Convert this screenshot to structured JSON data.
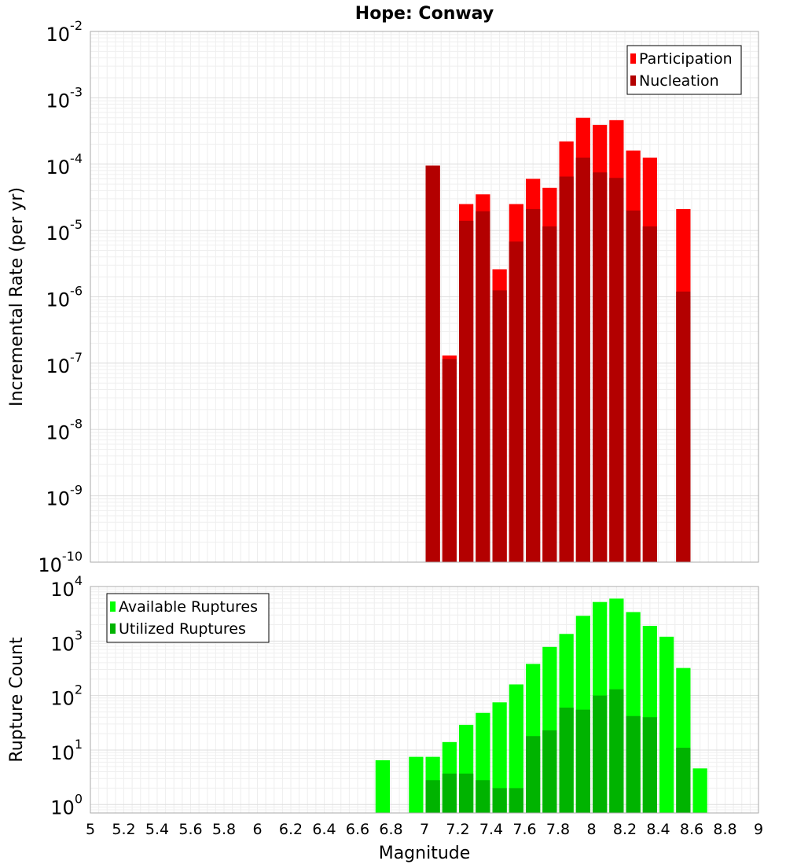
{
  "chart_data": [
    {
      "type": "bar",
      "title": "Hope: Conway",
      "xlabel": "",
      "ylabel": "Incremental Rate (per yr)",
      "xlim": [
        5,
        9
      ],
      "ylim": [
        1e-10,
        0.01
      ],
      "yscale": "log",
      "y_tick_exponents": [
        "-10",
        "-9",
        "-8",
        "-7",
        "-6",
        "-5",
        "-4",
        "-3",
        "-2"
      ],
      "y_tick_base": "10",
      "grid": true,
      "legend_position": "top-right",
      "bar_width": 0.1,
      "series": [
        {
          "name": "Participation",
          "color": "#ff0000",
          "points": [
            {
              "x": 7.05,
              "y": 9.5e-05
            },
            {
              "x": 7.15,
              "y": 1.3e-07
            },
            {
              "x": 7.25,
              "y": 2.5e-05
            },
            {
              "x": 7.35,
              "y": 3.5e-05
            },
            {
              "x": 7.45,
              "y": 2.6e-06
            },
            {
              "x": 7.55,
              "y": 2.5e-05
            },
            {
              "x": 7.65,
              "y": 6e-05
            },
            {
              "x": 7.75,
              "y": 4.4e-05
            },
            {
              "x": 7.85,
              "y": 0.00022
            },
            {
              "x": 7.95,
              "y": 0.0005
            },
            {
              "x": 8.05,
              "y": 0.00039
            },
            {
              "x": 8.15,
              "y": 0.00046
            },
            {
              "x": 8.25,
              "y": 0.00016
            },
            {
              "x": 8.35,
              "y": 0.000125
            },
            {
              "x": 8.55,
              "y": 2.1e-05
            }
          ]
        },
        {
          "name": "Nucleation",
          "color": "#b30000",
          "points": [
            {
              "x": 7.05,
              "y": 9.5e-05
            },
            {
              "x": 7.15,
              "y": 1.15e-07
            },
            {
              "x": 7.25,
              "y": 1.4e-05
            },
            {
              "x": 7.35,
              "y": 1.95e-05
            },
            {
              "x": 7.45,
              "y": 1.25e-06
            },
            {
              "x": 7.55,
              "y": 6.8e-06
            },
            {
              "x": 7.65,
              "y": 2.1e-05
            },
            {
              "x": 7.75,
              "y": 1.15e-05
            },
            {
              "x": 7.85,
              "y": 6.5e-05
            },
            {
              "x": 7.95,
              "y": 0.000125
            },
            {
              "x": 8.05,
              "y": 7.5e-05
            },
            {
              "x": 8.15,
              "y": 6.2e-05
            },
            {
              "x": 8.25,
              "y": 2e-05
            },
            {
              "x": 8.35,
              "y": 1.15e-05
            },
            {
              "x": 8.55,
              "y": 1.2e-06
            }
          ]
        }
      ]
    },
    {
      "type": "bar",
      "title": "",
      "xlabel": "Magnitude",
      "ylabel": "Rupture Count",
      "xlim": [
        5,
        9
      ],
      "ylim": [
        0.7,
        10000
      ],
      "yscale": "log",
      "y_tick_exponents": [
        "0",
        "1",
        "2",
        "3",
        "4"
      ],
      "y_tick_base": "10",
      "x_ticks": [
        "5",
        "5.2",
        "5.4",
        "5.6",
        "5.8",
        "6",
        "6.2",
        "6.4",
        "6.6",
        "6.8",
        "7",
        "7.2",
        "7.4",
        "7.6",
        "7.8",
        "8",
        "8.2",
        "8.4",
        "8.6",
        "8.8",
        "9"
      ],
      "grid": true,
      "legend_position": "top-left",
      "bar_width": 0.1,
      "series": [
        {
          "name": "Available Ruptures",
          "color": "#00ff00",
          "points": [
            {
              "x": 6.75,
              "y": 6.5
            },
            {
              "x": 6.95,
              "y": 7.5
            },
            {
              "x": 7.05,
              "y": 7.5
            },
            {
              "x": 7.15,
              "y": 14
            },
            {
              "x": 7.25,
              "y": 29
            },
            {
              "x": 7.35,
              "y": 48
            },
            {
              "x": 7.45,
              "y": 75
            },
            {
              "x": 7.55,
              "y": 160
            },
            {
              "x": 7.65,
              "y": 380
            },
            {
              "x": 7.75,
              "y": 780
            },
            {
              "x": 7.85,
              "y": 1350
            },
            {
              "x": 7.95,
              "y": 2900
            },
            {
              "x": 8.05,
              "y": 5200
            },
            {
              "x": 8.15,
              "y": 6000
            },
            {
              "x": 8.25,
              "y": 3400
            },
            {
              "x": 8.35,
              "y": 1900
            },
            {
              "x": 8.45,
              "y": 1200
            },
            {
              "x": 8.55,
              "y": 320
            },
            {
              "x": 8.65,
              "y": 4.6
            }
          ]
        },
        {
          "name": "Utilized Ruptures",
          "color": "#00b300",
          "points": [
            {
              "x": 7.05,
              "y": 2.8
            },
            {
              "x": 7.15,
              "y": 3.7
            },
            {
              "x": 7.25,
              "y": 3.7
            },
            {
              "x": 7.35,
              "y": 2.8
            },
            {
              "x": 7.45,
              "y": 2
            },
            {
              "x": 7.55,
              "y": 2
            },
            {
              "x": 7.65,
              "y": 18
            },
            {
              "x": 7.75,
              "y": 23
            },
            {
              "x": 7.85,
              "y": 60
            },
            {
              "x": 7.95,
              "y": 55
            },
            {
              "x": 8.05,
              "y": 100
            },
            {
              "x": 8.15,
              "y": 130
            },
            {
              "x": 8.25,
              "y": 42
            },
            {
              "x": 8.35,
              "y": 40
            },
            {
              "x": 8.55,
              "y": 11
            }
          ]
        }
      ]
    }
  ]
}
